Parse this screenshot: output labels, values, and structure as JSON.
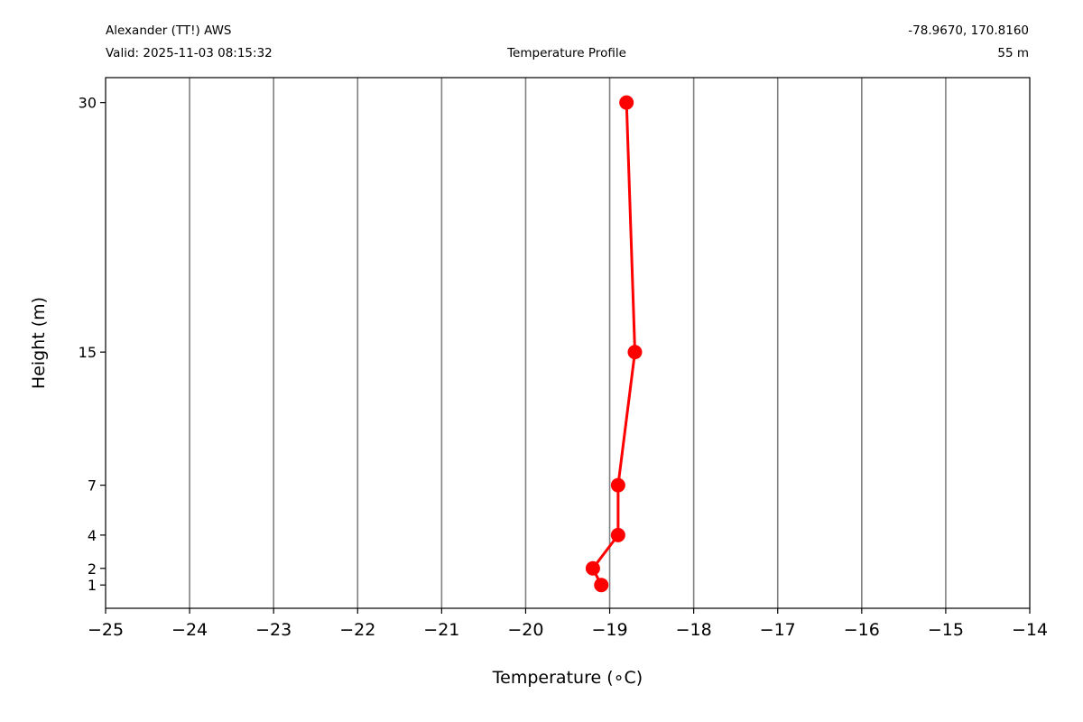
{
  "header": {
    "station_name": "Alexander (TT!) AWS",
    "valid": "Valid: 2025-11-03 08:15:32",
    "title": "Temperature Profile",
    "coordinates": "-78.9670, 170.8160",
    "elevation": "55 m"
  },
  "chart_data": {
    "type": "line",
    "title": "Temperature Profile",
    "xlabel": "Temperature (∘C)",
    "ylabel": "Height (m)",
    "xlim": [
      -25,
      -14
    ],
    "ylim": [
      -0.4,
      31.5
    ],
    "x_ticks": [
      -25,
      -24,
      -23,
      -22,
      -21,
      -20,
      -19,
      -18,
      -17,
      -16,
      -15,
      -14
    ],
    "y_ticks": [
      1,
      2,
      4,
      7,
      15,
      30
    ],
    "grid": "vertical",
    "series": [
      {
        "color": "#ff0000",
        "points": [
          {
            "temperature": -19.1,
            "height": 1
          },
          {
            "temperature": -19.2,
            "height": 2
          },
          {
            "temperature": -18.9,
            "height": 4
          },
          {
            "temperature": -18.9,
            "height": 7
          },
          {
            "temperature": -18.7,
            "height": 15
          },
          {
            "temperature": -18.8,
            "height": 30
          }
        ]
      }
    ]
  }
}
